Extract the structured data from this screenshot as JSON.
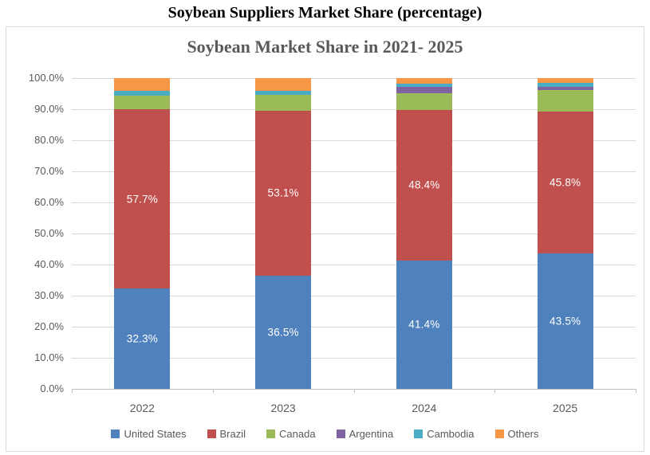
{
  "page_title": "Soybean Suppliers Market Share (percentage)",
  "chart_data": {
    "type": "bar",
    "subtype": "stacked-100-percent",
    "title": "Soybean Market Share in 2021- 2025",
    "categories": [
      "2022",
      "2023",
      "2024",
      "2025"
    ],
    "series": [
      {
        "name": "United States",
        "color": "#4F81BD",
        "values": [
          32.3,
          36.5,
          41.4,
          43.5
        ],
        "data_labels": [
          "32.3%",
          "36.5%",
          "41.4%",
          "43.5%"
        ]
      },
      {
        "name": "Brazil",
        "color": "#C0504D",
        "values": [
          57.7,
          53.1,
          48.4,
          45.8
        ],
        "data_labels": [
          "57.7%",
          "53.1%",
          "48.4%",
          "45.8%"
        ]
      },
      {
        "name": "Canada",
        "color": "#9BBB59",
        "values": [
          4.4,
          5.0,
          5.3,
          6.9
        ],
        "data_labels": null
      },
      {
        "name": "Argentina",
        "color": "#8064A2",
        "values": [
          0.0,
          0.0,
          2.0,
          0.9
        ],
        "data_labels": null
      },
      {
        "name": "Cambodia",
        "color": "#4BACC6",
        "values": [
          1.5,
          1.3,
          1.1,
          1.3
        ],
        "data_labels": null
      },
      {
        "name": "Others",
        "color": "#F79646",
        "values": [
          4.1,
          4.1,
          1.8,
          1.6
        ],
        "data_labels": null
      }
    ],
    "y_ticks": [
      "100.0%",
      "90.0%",
      "80.0%",
      "70.0%",
      "60.0%",
      "50.0%",
      "40.0%",
      "30.0%",
      "20.0%",
      "10.0%",
      "0.0%"
    ],
    "ylim": [
      0,
      100
    ],
    "grid": true,
    "legend_position": "bottom",
    "colors": {
      "axis_text": "#595959",
      "gridline": "#d9d9d9",
      "axis_line": "#bfbfbf",
      "data_label_text": "#ffffff",
      "title_text": "#595959",
      "page_title_text": "#000000"
    }
  }
}
